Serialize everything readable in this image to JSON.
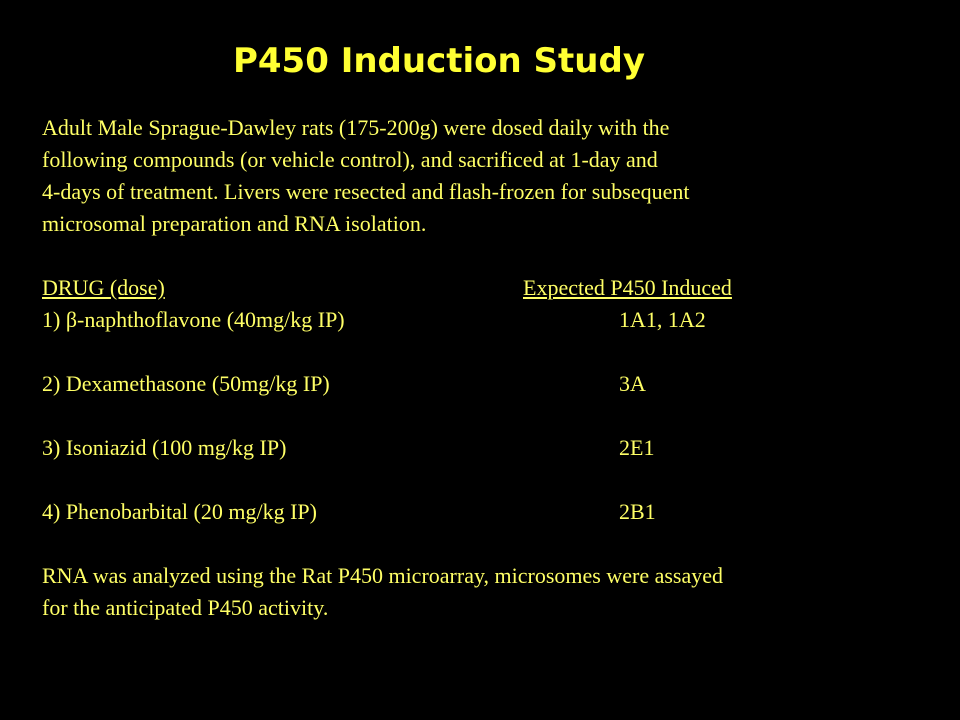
{
  "slide": {
    "title": "P450 Induction Study",
    "intro_lines": [
      "Adult Male Sprague-Dawley rats (175-200g) were dosed daily with the",
      "following compounds (or vehicle control), and sacrificed at 1-day and",
      "4-days of treatment. Livers were resected and flash-frozen for subsequent",
      "microsomal preparation and RNA isolation."
    ],
    "table": {
      "header_drug": "DRUG (dose)",
      "header_p450": "Expected P450 Induced",
      "rows": [
        {
          "drug": "1) β-naphthoflavone (40mg/kg IP)",
          "p450": "1A1, 1A2"
        },
        {
          "drug": "2) Dexamethasone (50mg/kg IP)",
          "p450": "3A"
        },
        {
          "drug": "3) Isoniazid (100 mg/kg IP)",
          "p450": "2E1"
        },
        {
          "drug": "4) Phenobarbital (20 mg/kg IP)",
          "p450": "2B1"
        }
      ]
    },
    "outro_lines": [
      "RNA was analyzed using the Rat P450 microarray, microsomes were assayed",
      "for the anticipated P450 activity."
    ],
    "colors": {
      "background": "#000000",
      "title": "#ffff33",
      "text": "#ffff66"
    }
  }
}
